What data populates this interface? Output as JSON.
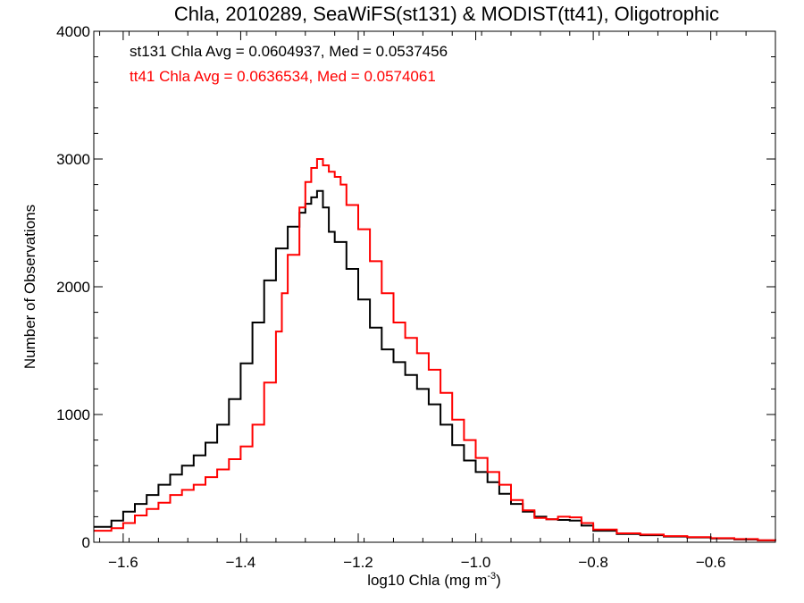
{
  "chart_data": {
    "type": "line",
    "title": "Chla, 2010289, SeaWiFS(st131) & MODIST(tt41), Oligotrophic",
    "xlabel": "log10 Chla (mg m",
    "xlabel_sup": "-3",
    "xlabel_tail": ")",
    "ylabel": "Number of Observations",
    "xlim": [
      -1.65,
      -0.49
    ],
    "ylim": [
      0,
      4000
    ],
    "x_ticks": [
      -1.6,
      -1.4,
      -1.2,
      -1.0,
      -0.8,
      -0.6
    ],
    "x_tick_labels": [
      "−1.6",
      "−1.4",
      "−1.2",
      "−1.0",
      "−0.8",
      "−0.6"
    ],
    "y_ticks": [
      0,
      1000,
      2000,
      3000,
      4000
    ],
    "y_tick_labels": [
      "0",
      "1000",
      "2000",
      "3000",
      "4000"
    ],
    "grid": false,
    "annotations": [
      {
        "text": "st131 Chla Avg = 0.0604937, Med = 0.0537456",
        "color": "#000000"
      },
      {
        "text": "tt41 Chla Avg = 0.0636534, Med = 0.0574061",
        "color": "#ff0000"
      }
    ],
    "series": [
      {
        "color": "#000000",
        "points": [
          [
            -1.65,
            120
          ],
          [
            -1.62,
            170
          ],
          [
            -1.6,
            240
          ],
          [
            -1.58,
            300
          ],
          [
            -1.56,
            370
          ],
          [
            -1.54,
            450
          ],
          [
            -1.52,
            530
          ],
          [
            -1.5,
            600
          ],
          [
            -1.48,
            680
          ],
          [
            -1.46,
            780
          ],
          [
            -1.44,
            920
          ],
          [
            -1.42,
            1120
          ],
          [
            -1.4,
            1400
          ],
          [
            -1.38,
            1720
          ],
          [
            -1.36,
            2050
          ],
          [
            -1.34,
            2300
          ],
          [
            -1.32,
            2470
          ],
          [
            -1.3,
            2580
          ],
          [
            -1.29,
            2650
          ],
          [
            -1.28,
            2700
          ],
          [
            -1.27,
            2750
          ],
          [
            -1.26,
            2620
          ],
          [
            -1.25,
            2430
          ],
          [
            -1.24,
            2350
          ],
          [
            -1.22,
            2140
          ],
          [
            -1.2,
            1900
          ],
          [
            -1.18,
            1680
          ],
          [
            -1.16,
            1510
          ],
          [
            -1.14,
            1410
          ],
          [
            -1.12,
            1310
          ],
          [
            -1.1,
            1200
          ],
          [
            -1.08,
            1080
          ],
          [
            -1.06,
            920
          ],
          [
            -1.04,
            760
          ],
          [
            -1.02,
            640
          ],
          [
            -1.0,
            550
          ],
          [
            -0.98,
            470
          ],
          [
            -0.96,
            380
          ],
          [
            -0.94,
            300
          ],
          [
            -0.92,
            240
          ],
          [
            -0.9,
            200
          ],
          [
            -0.88,
            180
          ],
          [
            -0.86,
            175
          ],
          [
            -0.84,
            170
          ],
          [
            -0.82,
            130
          ],
          [
            -0.8,
            90
          ],
          [
            -0.76,
            65
          ],
          [
            -0.72,
            55
          ],
          [
            -0.68,
            45
          ],
          [
            -0.64,
            38
          ],
          [
            -0.6,
            30
          ],
          [
            -0.56,
            22
          ],
          [
            -0.52,
            15
          ],
          [
            -0.49,
            12
          ]
        ]
      },
      {
        "color": "#ff0000",
        "points": [
          [
            -1.65,
            90
          ],
          [
            -1.62,
            110
          ],
          [
            -1.6,
            150
          ],
          [
            -1.58,
            210
          ],
          [
            -1.56,
            260
          ],
          [
            -1.54,
            310
          ],
          [
            -1.52,
            370
          ],
          [
            -1.5,
            410
          ],
          [
            -1.48,
            450
          ],
          [
            -1.46,
            510
          ],
          [
            -1.44,
            570
          ],
          [
            -1.42,
            650
          ],
          [
            -1.4,
            750
          ],
          [
            -1.38,
            920
          ],
          [
            -1.36,
            1250
          ],
          [
            -1.34,
            1650
          ],
          [
            -1.33,
            1950
          ],
          [
            -1.32,
            2250
          ],
          [
            -1.3,
            2620
          ],
          [
            -1.29,
            2820
          ],
          [
            -1.28,
            2930
          ],
          [
            -1.27,
            3000
          ],
          [
            -1.26,
            2950
          ],
          [
            -1.25,
            2900
          ],
          [
            -1.24,
            2860
          ],
          [
            -1.23,
            2800
          ],
          [
            -1.22,
            2640
          ],
          [
            -1.2,
            2450
          ],
          [
            -1.18,
            2200
          ],
          [
            -1.16,
            1950
          ],
          [
            -1.14,
            1720
          ],
          [
            -1.12,
            1600
          ],
          [
            -1.1,
            1480
          ],
          [
            -1.08,
            1350
          ],
          [
            -1.06,
            1170
          ],
          [
            -1.04,
            960
          ],
          [
            -1.02,
            800
          ],
          [
            -1.0,
            660
          ],
          [
            -0.98,
            550
          ],
          [
            -0.96,
            450
          ],
          [
            -0.94,
            330
          ],
          [
            -0.92,
            250
          ],
          [
            -0.9,
            190
          ],
          [
            -0.88,
            180
          ],
          [
            -0.86,
            200
          ],
          [
            -0.84,
            195
          ],
          [
            -0.82,
            150
          ],
          [
            -0.8,
            100
          ],
          [
            -0.76,
            70
          ],
          [
            -0.72,
            60
          ],
          [
            -0.68,
            48
          ],
          [
            -0.64,
            40
          ],
          [
            -0.6,
            32
          ],
          [
            -0.56,
            25
          ],
          [
            -0.52,
            16
          ],
          [
            -0.49,
            12
          ]
        ]
      }
    ]
  }
}
